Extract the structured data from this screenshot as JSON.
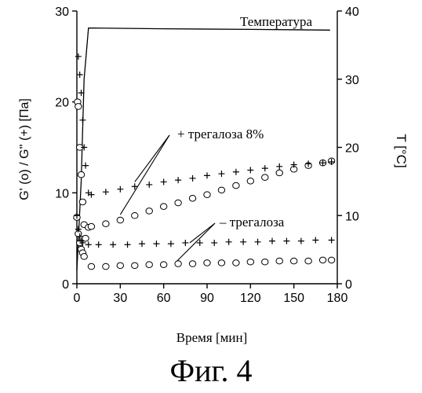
{
  "figure_caption": "Фиг. 4",
  "chart_data": {
    "type": "scatter",
    "xlabel": "Время [мин]",
    "ylabel_left": "G' (o) / G'' (+)   [Па]",
    "ylabel_right": "T [°C]",
    "xlim": [
      0,
      180
    ],
    "ylim_left": [
      0,
      30
    ],
    "ylim_right": [
      0,
      40
    ],
    "x_ticks": [
      0,
      30,
      60,
      90,
      120,
      150,
      180
    ],
    "y_left_ticks": [
      0,
      10,
      20,
      30
    ],
    "y_right_ticks": [
      0,
      10,
      20,
      30,
      40
    ],
    "annotations": {
      "temperature": "Температура",
      "with_trehalose": "+ трегалоза 8%",
      "without_trehalose": "– трегалоза"
    },
    "series": [
      {
        "name": "Температура",
        "marker": "line",
        "axis": "right",
        "points": [
          [
            0,
            2
          ],
          [
            3,
            15
          ],
          [
            5,
            30
          ],
          [
            8,
            37.5
          ],
          [
            12,
            37.5
          ],
          [
            60,
            37.4
          ],
          [
            120,
            37.3
          ],
          [
            175,
            37.2
          ]
        ]
      },
      {
        "name": "+ трегалоза 8%",
        "marker": "o",
        "axis": "left",
        "points": [
          [
            0,
            7.3
          ],
          [
            0.5,
            20
          ],
          [
            1,
            19.5
          ],
          [
            2,
            15
          ],
          [
            3,
            12
          ],
          [
            4,
            9
          ],
          [
            5,
            6.5
          ],
          [
            6,
            5
          ],
          [
            8,
            6.2
          ],
          [
            10,
            6.3
          ],
          [
            20,
            6.6
          ],
          [
            30,
            7.0
          ],
          [
            40,
            7.5
          ],
          [
            50,
            8.0
          ],
          [
            60,
            8.5
          ],
          [
            70,
            8.9
          ],
          [
            80,
            9.4
          ],
          [
            90,
            9.8
          ],
          [
            100,
            10.3
          ],
          [
            110,
            10.8
          ],
          [
            120,
            11.3
          ],
          [
            130,
            11.7
          ],
          [
            140,
            12.2
          ],
          [
            150,
            12.6
          ],
          [
            160,
            13.0
          ],
          [
            170,
            13.3
          ],
          [
            176,
            13.5
          ]
        ]
      },
      {
        "name": "+ трегалоза 8%",
        "marker": "+",
        "axis": "left",
        "points": [
          [
            0,
            7.5
          ],
          [
            1,
            25
          ],
          [
            2,
            23
          ],
          [
            3,
            21
          ],
          [
            4,
            18
          ],
          [
            5,
            15
          ],
          [
            6,
            13
          ],
          [
            8,
            10
          ],
          [
            10,
            9.8
          ],
          [
            20,
            10.1
          ],
          [
            30,
            10.4
          ],
          [
            40,
            10.7
          ],
          [
            50,
            10.9
          ],
          [
            60,
            11.2
          ],
          [
            70,
            11.4
          ],
          [
            80,
            11.6
          ],
          [
            90,
            11.9
          ],
          [
            100,
            12.1
          ],
          [
            110,
            12.3
          ],
          [
            120,
            12.5
          ],
          [
            130,
            12.7
          ],
          [
            140,
            12.9
          ],
          [
            150,
            13.1
          ],
          [
            160,
            13.2
          ],
          [
            170,
            13.3
          ],
          [
            176,
            13.4
          ]
        ]
      },
      {
        "name": "– трегалоза",
        "marker": "o",
        "axis": "left",
        "points": [
          [
            1,
            5.5
          ],
          [
            2,
            4.5
          ],
          [
            3,
            3.8
          ],
          [
            4,
            3.4
          ],
          [
            5,
            3.0
          ],
          [
            10,
            1.9
          ],
          [
            20,
            1.9
          ],
          [
            30,
            2.0
          ],
          [
            40,
            2.0
          ],
          [
            50,
            2.1
          ],
          [
            60,
            2.1
          ],
          [
            70,
            2.2
          ],
          [
            80,
            2.2
          ],
          [
            90,
            2.3
          ],
          [
            100,
            2.3
          ],
          [
            110,
            2.3
          ],
          [
            120,
            2.4
          ],
          [
            130,
            2.4
          ],
          [
            140,
            2.5
          ],
          [
            150,
            2.5
          ],
          [
            160,
            2.5
          ],
          [
            170,
            2.6
          ],
          [
            176,
            2.6
          ]
        ]
      },
      {
        "name": "– трегалоза",
        "marker": "+",
        "axis": "left",
        "points": [
          [
            1,
            6.0
          ],
          [
            2,
            5.2
          ],
          [
            3,
            4.7
          ],
          [
            4,
            4.5
          ],
          [
            8,
            4.3
          ],
          [
            15,
            4.3
          ],
          [
            25,
            4.3
          ],
          [
            35,
            4.3
          ],
          [
            45,
            4.4
          ],
          [
            55,
            4.4
          ],
          [
            65,
            4.4
          ],
          [
            75,
            4.5
          ],
          [
            85,
            4.5
          ],
          [
            95,
            4.5
          ],
          [
            105,
            4.6
          ],
          [
            115,
            4.6
          ],
          [
            125,
            4.6
          ],
          [
            135,
            4.7
          ],
          [
            145,
            4.7
          ],
          [
            155,
            4.7
          ],
          [
            165,
            4.8
          ],
          [
            176,
            4.8
          ]
        ]
      }
    ]
  }
}
